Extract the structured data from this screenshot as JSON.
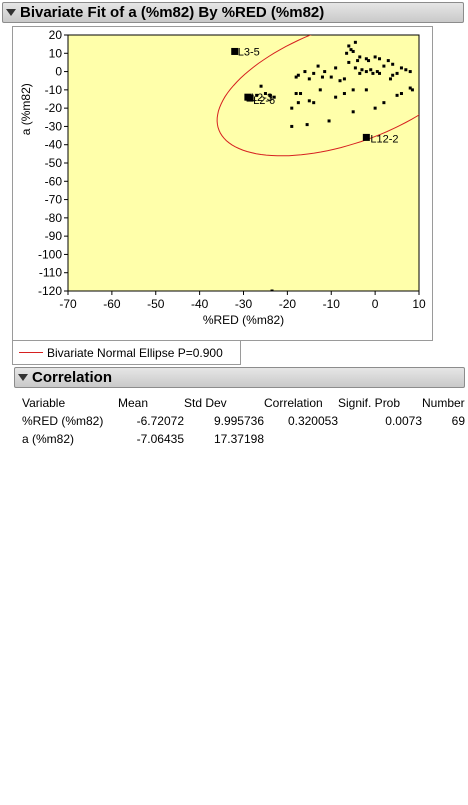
{
  "title": "Bivariate Fit of a (%m82) By %RED (%m82)",
  "legend": "Bivariate Normal Ellipse P=0.900",
  "correlation_section": {
    "title": "Correlation",
    "headers": [
      "Variable",
      "Mean",
      "Std Dev",
      "Correlation",
      "Signif. Prob",
      "Number"
    ],
    "rows": [
      [
        "%RED (%m82)",
        "-6.72072",
        "9.995736",
        "0.320053",
        "0.0073",
        "69"
      ],
      [
        "a (%m82)",
        "-7.06435",
        "17.37198",
        "",
        "",
        ""
      ]
    ]
  },
  "colors": {
    "plot_bg": "#ffffaa",
    "ellipse": "#d62020",
    "point": "#000000"
  },
  "chart_data": {
    "type": "scatter",
    "xlabel": "%RED (%m82)",
    "ylabel": "a (%m82)",
    "xlim": [
      -70,
      10
    ],
    "ylim": [
      -120,
      20
    ],
    "xticks": [
      -70,
      -60,
      -50,
      -40,
      -30,
      -20,
      -10,
      0,
      10
    ],
    "yticks": [
      20,
      10,
      0,
      -10,
      -20,
      -30,
      -40,
      -50,
      -60,
      -70,
      -80,
      -90,
      -100,
      -110,
      -120
    ],
    "grid": false,
    "labeled_points": [
      {
        "label": "L3-5",
        "x": -32,
        "y": 11
      },
      {
        "label": "L2-3",
        "x": -29,
        "y": -14
      },
      {
        "label": "L2-6",
        "x": -28.5,
        "y": -14.5
      },
      {
        "label": "L12-2",
        "x": -2,
        "y": -36
      }
    ],
    "points": [
      [
        -5.5,
        12
      ],
      [
        -6,
        14
      ],
      [
        -4.5,
        16
      ],
      [
        -5,
        11
      ],
      [
        -6.5,
        10
      ],
      [
        -3.5,
        8
      ],
      [
        -2,
        7
      ],
      [
        0,
        8
      ],
      [
        1,
        7
      ],
      [
        -4,
        6
      ],
      [
        -6,
        5
      ],
      [
        -1.5,
        6
      ],
      [
        3,
        6
      ],
      [
        4,
        4
      ],
      [
        2,
        3
      ],
      [
        6,
        2
      ],
      [
        7,
        1
      ],
      [
        8,
        0
      ],
      [
        -1,
        1
      ],
      [
        0.5,
        0
      ],
      [
        -2,
        0
      ],
      [
        -3,
        1
      ],
      [
        -4.5,
        2
      ],
      [
        -9,
        2
      ],
      [
        -11.5,
        0
      ],
      [
        -13,
        3
      ],
      [
        -16,
        0
      ],
      [
        -17.5,
        -2
      ],
      [
        -18,
        -3
      ],
      [
        -15,
        -4
      ],
      [
        -14,
        -1
      ],
      [
        -12,
        -3
      ],
      [
        -10,
        -3
      ],
      [
        -8,
        -5
      ],
      [
        -7,
        -4
      ],
      [
        -3.5,
        -1
      ],
      [
        -0.5,
        -1
      ],
      [
        1,
        -1
      ],
      [
        5,
        -1
      ],
      [
        4,
        -2
      ],
      [
        3.5,
        -4
      ],
      [
        -5,
        -10
      ],
      [
        -7,
        -12
      ],
      [
        -9,
        -14
      ],
      [
        -12.5,
        -10
      ],
      [
        -14,
        -17
      ],
      [
        -15,
        -16
      ],
      [
        -17,
        -12
      ],
      [
        -18,
        -12
      ],
      [
        -19,
        -20
      ],
      [
        -17.5,
        -17
      ],
      [
        -23,
        -14
      ],
      [
        -24,
        -13
      ],
      [
        -25,
        -12
      ],
      [
        -26,
        -8
      ],
      [
        -27,
        -13
      ],
      [
        -2,
        -10
      ],
      [
        5,
        -13
      ],
      [
        6,
        -12
      ],
      [
        8,
        -9
      ],
      [
        8.5,
        -10
      ],
      [
        2,
        -17
      ],
      [
        0,
        -20
      ],
      [
        -5,
        -22
      ],
      [
        -10.5,
        -27
      ],
      [
        -15.5,
        -29
      ],
      [
        -19,
        -30
      ],
      [
        -23.5,
        -120
      ]
    ],
    "ellipse": {
      "cx": -6.7,
      "cy": -7.1,
      "angle_deg": 60,
      "semi_major": 43,
      "semi_minor": 23
    }
  }
}
